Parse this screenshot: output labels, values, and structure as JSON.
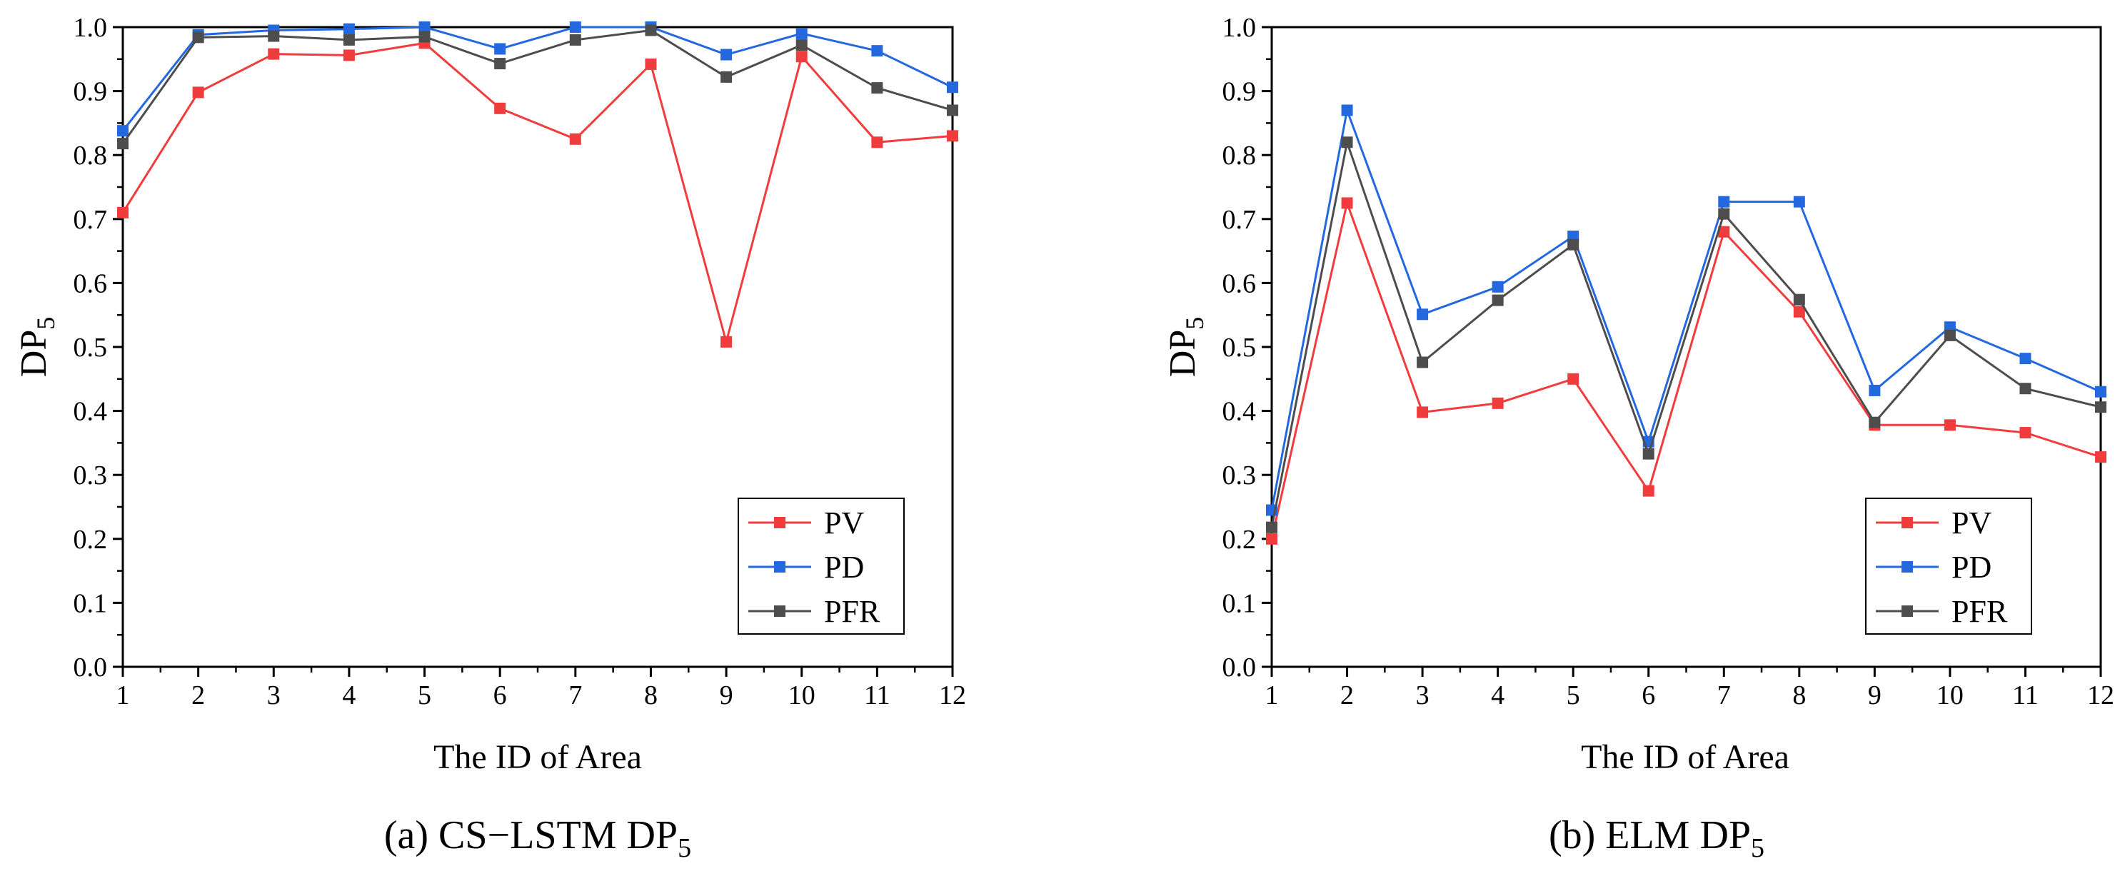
{
  "chart_data": [
    {
      "type": "line",
      "panel": "a",
      "title": "",
      "caption": "(a) CS−LSTM DP",
      "caption_sub": "5",
      "ylabel": "DP",
      "ylabel_sub": "5",
      "xlabel": "The ID of Area",
      "x": [
        1,
        2,
        3,
        4,
        5,
        6,
        7,
        8,
        9,
        10,
        11,
        12
      ],
      "xlim": [
        1,
        12
      ],
      "ylim": [
        0.0,
        1.0
      ],
      "yticks": [
        "0.0",
        "0.1",
        "0.2",
        "0.3",
        "0.4",
        "0.5",
        "0.6",
        "0.7",
        "0.8",
        "0.9",
        "1.0"
      ],
      "xticks": [
        "1",
        "2",
        "3",
        "4",
        "5",
        "6",
        "7",
        "8",
        "9",
        "10",
        "11",
        "12"
      ],
      "legend_position": "bottom-right",
      "grid": false,
      "series": [
        {
          "name": "PV",
          "color": "#f03c3c",
          "values": [
            0.71,
            0.898,
            0.958,
            0.956,
            0.975,
            0.873,
            0.825,
            0.942,
            0.508,
            0.954,
            0.82,
            0.83
          ]
        },
        {
          "name": "PD",
          "color": "#2468e0",
          "values": [
            0.838,
            0.988,
            0.995,
            0.997,
            1.0,
            0.966,
            1.0,
            1.0,
            0.957,
            0.99,
            0.963,
            0.906
          ]
        },
        {
          "name": "PFR",
          "color": "#4d4d4d",
          "values": [
            0.818,
            0.984,
            0.986,
            0.98,
            0.985,
            0.943,
            0.98,
            0.995,
            0.922,
            0.972,
            0.905,
            0.87
          ]
        }
      ]
    },
    {
      "type": "line",
      "panel": "b",
      "title": "",
      "caption": "(b) ELM DP",
      "caption_sub": "5",
      "ylabel": "DP",
      "ylabel_sub": "5",
      "xlabel": "The ID of Area",
      "x": [
        1,
        2,
        3,
        4,
        5,
        6,
        7,
        8,
        9,
        10,
        11,
        12
      ],
      "xlim": [
        1,
        12
      ],
      "ylim": [
        0.0,
        1.0
      ],
      "yticks": [
        "0.0",
        "0.1",
        "0.2",
        "0.3",
        "0.4",
        "0.5",
        "0.6",
        "0.7",
        "0.8",
        "0.9",
        "1.0"
      ],
      "xticks": [
        "1",
        "2",
        "3",
        "4",
        "5",
        "6",
        "7",
        "8",
        "9",
        "10",
        "11",
        "12"
      ],
      "legend_position": "bottom-right",
      "grid": false,
      "series": [
        {
          "name": "PV",
          "color": "#f03c3c",
          "values": [
            0.2,
            0.725,
            0.398,
            0.412,
            0.45,
            0.275,
            0.68,
            0.555,
            0.378,
            0.378,
            0.366,
            0.328
          ]
        },
        {
          "name": "PD",
          "color": "#2468e0",
          "values": [
            0.245,
            0.87,
            0.551,
            0.594,
            0.673,
            0.352,
            0.727,
            0.727,
            0.432,
            0.531,
            0.482,
            0.43
          ]
        },
        {
          "name": "PFR",
          "color": "#4d4d4d",
          "values": [
            0.218,
            0.82,
            0.476,
            0.573,
            0.66,
            0.333,
            0.708,
            0.574,
            0.382,
            0.518,
            0.435,
            0.406
          ]
        }
      ]
    }
  ]
}
